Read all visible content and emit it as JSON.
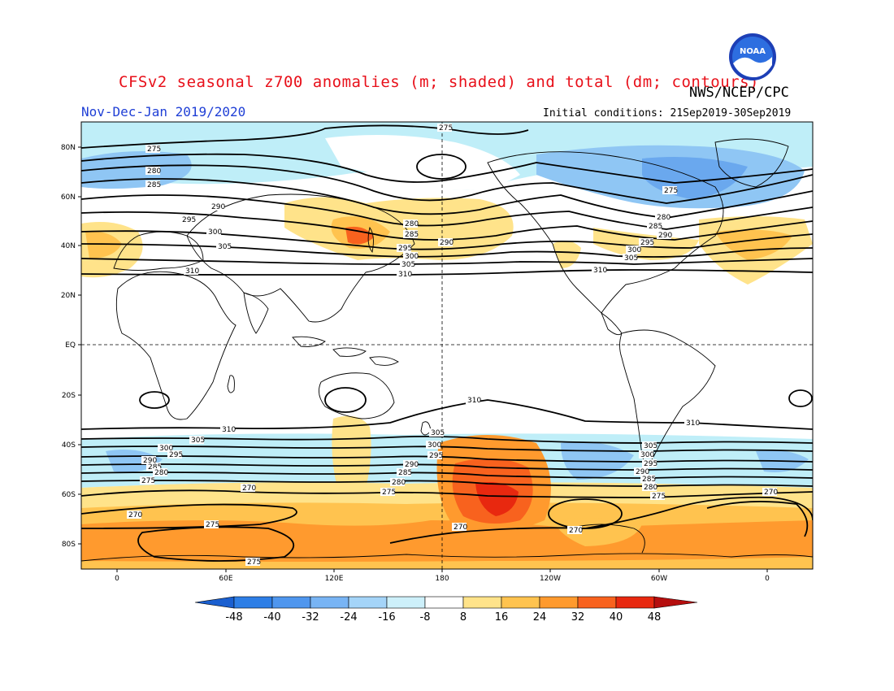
{
  "header": {
    "title": "CFSv2 seasonal z700 anomalies (m; shaded) and total (dm; contours)",
    "agency": "NWS/NCEP/CPC",
    "period": "Nov-Dec-Jan 2019/2020",
    "initial_conditions": "Initial conditions: 21Sep2019-30Sep2019",
    "logo_text": "NOAA"
  },
  "map": {
    "lat_labels": [
      "80N",
      "60N",
      "40N",
      "20N",
      "EQ",
      "20S",
      "40S",
      "60S",
      "80S"
    ],
    "lon_labels": [
      "0",
      "60E",
      "120E",
      "180",
      "120W",
      "60W",
      "0"
    ],
    "contour_labels": [
      "275",
      "280",
      "285",
      "290",
      "295",
      "300",
      "305",
      "310",
      "270",
      "275",
      "280",
      "285",
      "290",
      "295",
      "300",
      "305",
      "310"
    ]
  },
  "colorbar": {
    "ticks": [
      "-48",
      "-40",
      "-32",
      "-24",
      "-16",
      "-8",
      "8",
      "16",
      "24",
      "32",
      "40",
      "48"
    ],
    "colors": [
      "#1a5fd0",
      "#2d7ee6",
      "#4f96ee",
      "#78b4f4",
      "#a4d4f8",
      "#cdf0fa",
      "#ffffff",
      "#ffe38a",
      "#ffc34f",
      "#ff9a2e",
      "#f8621e",
      "#e8280f",
      "#b50e0e"
    ]
  },
  "shading": {
    "light_blue": "#bfeef8",
    "mid_blue": "#8fc6f4",
    "blue": "#6aa8ee",
    "yellow": "#ffe38a",
    "orange": "#ffc34f",
    "dark_orange": "#ff9a2e",
    "red_orange": "#f8621e",
    "red": "#e8280f"
  }
}
